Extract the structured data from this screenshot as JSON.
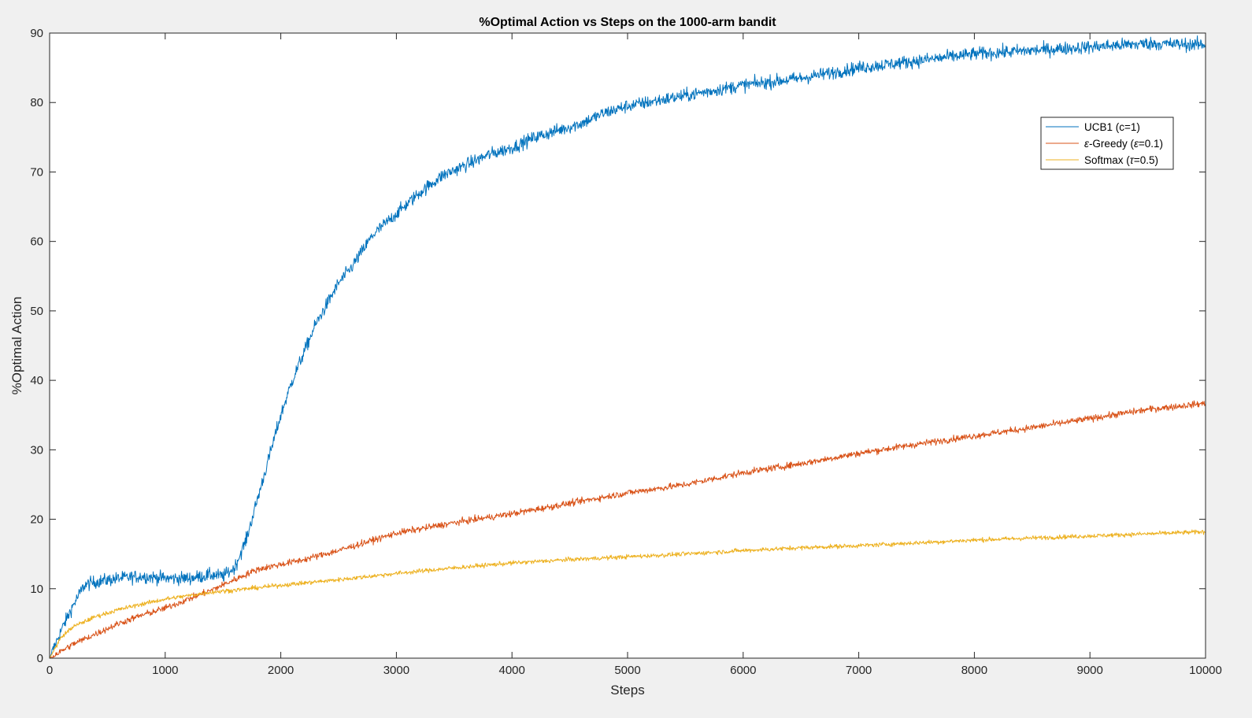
{
  "chart_data": {
    "type": "line",
    "title": "%Optimal Action vs Steps on the 1000-arm bandit",
    "xlabel": "Steps",
    "ylabel": "%Optimal Action",
    "xlim": [
      0,
      10000
    ],
    "ylim": [
      0,
      90
    ],
    "xticks": [
      0,
      1000,
      2000,
      3000,
      4000,
      5000,
      6000,
      7000,
      8000,
      9000,
      10000
    ],
    "yticks": [
      0,
      10,
      20,
      30,
      40,
      50,
      60,
      70,
      80,
      90
    ],
    "grid": false,
    "legend_position": "top-right",
    "colors": {
      "figure_background": "#f0f0f0",
      "axes_background": "#ffffff",
      "axes_edge": "#262626"
    },
    "series": [
      {
        "name": "UCB1 (c=1)",
        "legend_parts": [
          {
            "text": "UCB1 (c=1)",
            "italic": false
          }
        ],
        "color": "#0072bd",
        "noise": 0.9,
        "points": [
          [
            0,
            0
          ],
          [
            100,
            4
          ],
          [
            200,
            7.5
          ],
          [
            300,
            10.5
          ],
          [
            400,
            11
          ],
          [
            600,
            11.5
          ],
          [
            800,
            11.8
          ],
          [
            1000,
            11.5
          ],
          [
            1200,
            11.5
          ],
          [
            1400,
            12
          ],
          [
            1500,
            11.8
          ],
          [
            1600,
            13
          ],
          [
            1700,
            17
          ],
          [
            1800,
            23
          ],
          [
            1900,
            29
          ],
          [
            2000,
            35
          ],
          [
            2100,
            40
          ],
          [
            2200,
            44
          ],
          [
            2300,
            48
          ],
          [
            2400,
            51
          ],
          [
            2500,
            54
          ],
          [
            2600,
            56
          ],
          [
            2700,
            58.5
          ],
          [
            2800,
            61
          ],
          [
            2900,
            62.5
          ],
          [
            3000,
            64
          ],
          [
            3200,
            67
          ],
          [
            3400,
            69.5
          ],
          [
            3600,
            71
          ],
          [
            3800,
            72.5
          ],
          [
            4000,
            73.5
          ],
          [
            4200,
            75
          ],
          [
            4400,
            76
          ],
          [
            4600,
            77
          ],
          [
            4800,
            78.5
          ],
          [
            5000,
            79.5
          ],
          [
            5500,
            81
          ],
          [
            6000,
            82.5
          ],
          [
            6500,
            83.5
          ],
          [
            7000,
            85
          ],
          [
            7500,
            86
          ],
          [
            8000,
            87
          ],
          [
            8500,
            87.5
          ],
          [
            9000,
            88
          ],
          [
            9500,
            88.5
          ],
          [
            10000,
            88.3
          ]
        ]
      },
      {
        "name": "ε-Greedy (ε=0.1)",
        "legend_parts": [
          {
            "text": "ε",
            "italic": true
          },
          {
            "text": "-Greedy (",
            "italic": false
          },
          {
            "text": "ε",
            "italic": true
          },
          {
            "text": "=0.1)",
            "italic": false
          }
        ],
        "color": "#d95319",
        "noise": 0.45,
        "points": [
          [
            0,
            0
          ],
          [
            200,
            2
          ],
          [
            400,
            3.5
          ],
          [
            600,
            5
          ],
          [
            800,
            6.2
          ],
          [
            1000,
            7.2
          ],
          [
            1200,
            8.5
          ],
          [
            1400,
            9.8
          ],
          [
            1600,
            11.3
          ],
          [
            1800,
            12.8
          ],
          [
            2000,
            13.5
          ],
          [
            2200,
            14.2
          ],
          [
            2500,
            15.5
          ],
          [
            2800,
            17
          ],
          [
            3000,
            18
          ],
          [
            3500,
            19.5
          ],
          [
            4000,
            20.8
          ],
          [
            4500,
            22.3
          ],
          [
            5000,
            23.8
          ],
          [
            5500,
            25
          ],
          [
            6000,
            26.7
          ],
          [
            6500,
            28
          ],
          [
            7000,
            29.5
          ],
          [
            7500,
            30.8
          ],
          [
            8000,
            32
          ],
          [
            8500,
            33.2
          ],
          [
            9000,
            34.5
          ],
          [
            9500,
            35.8
          ],
          [
            10000,
            36.7
          ]
        ]
      },
      {
        "name": "Softmax (τ=0.5)",
        "legend_parts": [
          {
            "text": "Softmax (",
            "italic": false
          },
          {
            "text": "τ",
            "italic": true
          },
          {
            "text": "=0.5)",
            "italic": false
          }
        ],
        "color": "#edb120",
        "noise": 0.3,
        "points": [
          [
            0,
            0
          ],
          [
            100,
            3
          ],
          [
            200,
            4.5
          ],
          [
            400,
            6
          ],
          [
            600,
            7
          ],
          [
            800,
            7.8
          ],
          [
            1000,
            8.5
          ],
          [
            1200,
            9
          ],
          [
            1400,
            9.5
          ],
          [
            1600,
            9.8
          ],
          [
            2000,
            10.5
          ],
          [
            2500,
            11.3
          ],
          [
            3000,
            12.2
          ],
          [
            3500,
            13
          ],
          [
            4000,
            13.7
          ],
          [
            4500,
            14.2
          ],
          [
            5000,
            14.6
          ],
          [
            5500,
            15
          ],
          [
            6000,
            15.5
          ],
          [
            6500,
            15.9
          ],
          [
            7000,
            16.2
          ],
          [
            7500,
            16.6
          ],
          [
            8000,
            17
          ],
          [
            8500,
            17.3
          ],
          [
            9000,
            17.6
          ],
          [
            9500,
            17.9
          ],
          [
            10000,
            18.2
          ]
        ]
      }
    ]
  }
}
